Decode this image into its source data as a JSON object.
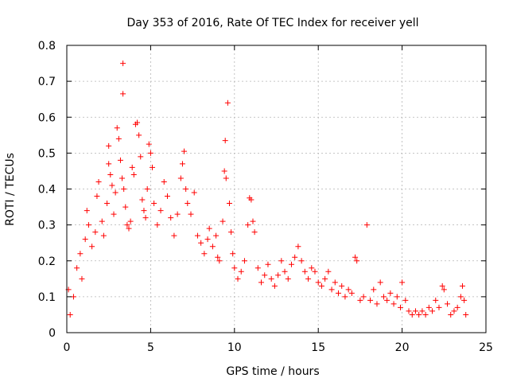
{
  "chart_data": {
    "type": "scatter",
    "title": "Day 353 of 2016, Rate Of TEC Index for receiver yell",
    "xlabel": "GPS time / hours",
    "ylabel": "ROTI / TECUs",
    "xlim": [
      0,
      25
    ],
    "ylim": [
      0,
      0.8
    ],
    "xticks": [
      0,
      5,
      10,
      15,
      20,
      25
    ],
    "yticks": [
      0,
      0.1,
      0.2,
      0.3,
      0.4,
      0.5,
      0.6,
      0.7,
      0.8
    ],
    "xtick_labels": [
      "0",
      "5",
      "10",
      "15",
      "20",
      "25"
    ],
    "ytick_labels": [
      "0",
      "0.1",
      "0.2",
      "0.3",
      "0.4",
      "0.5",
      "0.6",
      "0.7",
      "0.8"
    ],
    "grid": true,
    "marker": "+",
    "color": "#ff0000",
    "series": [
      {
        "name": "ROTI",
        "points": [
          [
            0.1,
            0.12
          ],
          [
            0.2,
            0.05
          ],
          [
            0.4,
            0.1
          ],
          [
            0.6,
            0.18
          ],
          [
            0.8,
            0.22
          ],
          [
            0.9,
            0.15
          ],
          [
            1.1,
            0.26
          ],
          [
            1.2,
            0.34
          ],
          [
            1.3,
            0.3
          ],
          [
            1.5,
            0.24
          ],
          [
            1.7,
            0.28
          ],
          [
            1.8,
            0.38
          ],
          [
            1.9,
            0.42
          ],
          [
            2.1,
            0.31
          ],
          [
            2.2,
            0.27
          ],
          [
            2.4,
            0.36
          ],
          [
            2.5,
            0.47
          ],
          [
            2.5,
            0.52
          ],
          [
            2.6,
            0.44
          ],
          [
            2.7,
            0.41
          ],
          [
            2.8,
            0.33
          ],
          [
            2.9,
            0.39
          ],
          [
            3.0,
            0.57
          ],
          [
            3.1,
            0.54
          ],
          [
            3.2,
            0.48
          ],
          [
            3.3,
            0.43
          ],
          [
            3.35,
            0.75
          ],
          [
            3.35,
            0.665
          ],
          [
            3.4,
            0.4
          ],
          [
            3.5,
            0.35
          ],
          [
            3.6,
            0.3
          ],
          [
            3.7,
            0.29
          ],
          [
            3.8,
            0.31
          ],
          [
            3.9,
            0.46
          ],
          [
            4.0,
            0.44
          ],
          [
            4.1,
            0.58
          ],
          [
            4.2,
            0.585
          ],
          [
            4.3,
            0.55
          ],
          [
            4.4,
            0.49
          ],
          [
            4.5,
            0.37
          ],
          [
            4.6,
            0.34
          ],
          [
            4.7,
            0.32
          ],
          [
            4.8,
            0.4
          ],
          [
            4.9,
            0.525
          ],
          [
            5.0,
            0.5
          ],
          [
            5.1,
            0.46
          ],
          [
            5.2,
            0.36
          ],
          [
            5.4,
            0.3
          ],
          [
            5.6,
            0.34
          ],
          [
            5.8,
            0.42
          ],
          [
            6.0,
            0.38
          ],
          [
            6.2,
            0.32
          ],
          [
            6.4,
            0.27
          ],
          [
            6.6,
            0.33
          ],
          [
            6.8,
            0.43
          ],
          [
            6.9,
            0.47
          ],
          [
            7.0,
            0.505
          ],
          [
            7.1,
            0.4
          ],
          [
            7.2,
            0.36
          ],
          [
            7.4,
            0.33
          ],
          [
            7.6,
            0.39
          ],
          [
            7.8,
            0.27
          ],
          [
            8.0,
            0.25
          ],
          [
            8.2,
            0.22
          ],
          [
            8.4,
            0.26
          ],
          [
            8.5,
            0.29
          ],
          [
            8.7,
            0.24
          ],
          [
            8.9,
            0.27
          ],
          [
            9.0,
            0.21
          ],
          [
            9.1,
            0.2
          ],
          [
            9.3,
            0.31
          ],
          [
            9.4,
            0.45
          ],
          [
            9.45,
            0.535
          ],
          [
            9.5,
            0.43
          ],
          [
            9.6,
            0.64
          ],
          [
            9.7,
            0.36
          ],
          [
            9.8,
            0.28
          ],
          [
            9.9,
            0.22
          ],
          [
            10.0,
            0.18
          ],
          [
            10.2,
            0.15
          ],
          [
            10.4,
            0.17
          ],
          [
            10.6,
            0.2
          ],
          [
            10.8,
            0.3
          ],
          [
            10.9,
            0.375
          ],
          [
            11.0,
            0.37
          ],
          [
            11.1,
            0.31
          ],
          [
            11.2,
            0.28
          ],
          [
            11.4,
            0.18
          ],
          [
            11.6,
            0.14
          ],
          [
            11.8,
            0.16
          ],
          [
            12.0,
            0.19
          ],
          [
            12.2,
            0.15
          ],
          [
            12.4,
            0.13
          ],
          [
            12.6,
            0.16
          ],
          [
            12.8,
            0.2
          ],
          [
            13.0,
            0.17
          ],
          [
            13.2,
            0.15
          ],
          [
            13.4,
            0.19
          ],
          [
            13.6,
            0.21
          ],
          [
            13.8,
            0.24
          ],
          [
            14.0,
            0.2
          ],
          [
            14.2,
            0.17
          ],
          [
            14.4,
            0.15
          ],
          [
            14.6,
            0.18
          ],
          [
            14.8,
            0.17
          ],
          [
            15.0,
            0.14
          ],
          [
            15.2,
            0.13
          ],
          [
            15.4,
            0.15
          ],
          [
            15.6,
            0.17
          ],
          [
            15.8,
            0.12
          ],
          [
            16.0,
            0.14
          ],
          [
            16.2,
            0.11
          ],
          [
            16.4,
            0.13
          ],
          [
            16.6,
            0.1
          ],
          [
            16.8,
            0.12
          ],
          [
            17.0,
            0.11
          ],
          [
            17.2,
            0.21
          ],
          [
            17.3,
            0.2
          ],
          [
            17.5,
            0.09
          ],
          [
            17.7,
            0.1
          ],
          [
            17.9,
            0.3
          ],
          [
            18.1,
            0.09
          ],
          [
            18.3,
            0.12
          ],
          [
            18.5,
            0.08
          ],
          [
            18.7,
            0.14
          ],
          [
            18.9,
            0.1
          ],
          [
            19.1,
            0.09
          ],
          [
            19.3,
            0.11
          ],
          [
            19.5,
            0.08
          ],
          [
            19.7,
            0.1
          ],
          [
            19.9,
            0.07
          ],
          [
            20.0,
            0.14
          ],
          [
            20.2,
            0.09
          ],
          [
            20.4,
            0.06
          ],
          [
            20.6,
            0.05
          ],
          [
            20.8,
            0.06
          ],
          [
            21.0,
            0.05
          ],
          [
            21.2,
            0.06
          ],
          [
            21.4,
            0.05
          ],
          [
            21.6,
            0.07
          ],
          [
            21.8,
            0.06
          ],
          [
            22.0,
            0.09
          ],
          [
            22.2,
            0.07
          ],
          [
            22.4,
            0.13
          ],
          [
            22.5,
            0.12
          ],
          [
            22.7,
            0.08
          ],
          [
            22.9,
            0.05
          ],
          [
            23.1,
            0.06
          ],
          [
            23.3,
            0.07
          ],
          [
            23.5,
            0.1
          ],
          [
            23.6,
            0.13
          ],
          [
            23.7,
            0.09
          ],
          [
            23.8,
            0.05
          ]
        ]
      }
    ]
  }
}
